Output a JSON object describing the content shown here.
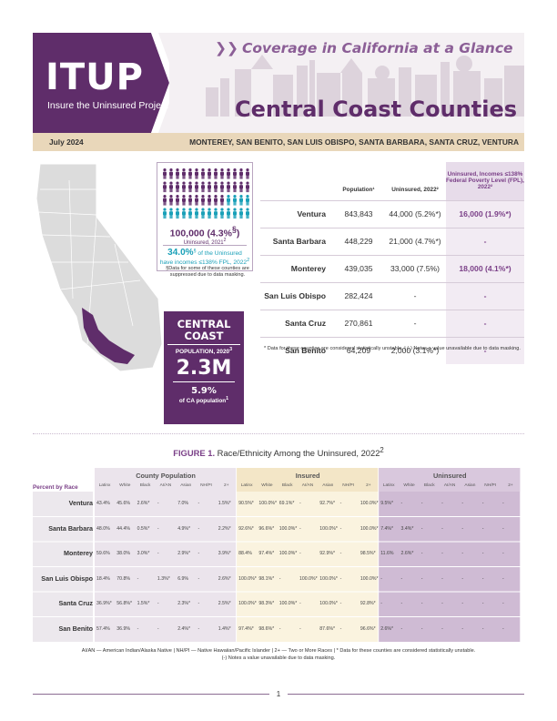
{
  "header": {
    "logo": "ITUP",
    "logo_sub": "Insure the Uninsured Project",
    "series": "Coverage in California at a Glance",
    "title": "Central Coast Counties",
    "date": "July 2024",
    "counties": "MONTEREY, SAN BENITO, SAN LUIS OBISPO, SANTA BARBARA, SANTA CRUZ, VENTURA"
  },
  "colors": {
    "brand": "#5f2d6a",
    "accent": "#8b5e96",
    "teal": "#1aa0b8",
    "tan": "#e9d7ba",
    "lavender": "#e7dcea"
  },
  "uninsured": {
    "count": "100,000 (4.3%",
    "count_sup": "§",
    "count_close": ")",
    "label": "Uninsured, 2021",
    "label_sup": "2",
    "pct": "34.0%",
    "pct_sup": "§",
    "pct_text": " of the Uninsured",
    "pct_text2": "have incomes ≤138% FPL, 2022",
    "pct_text2_sup": "2",
    "note": "§Data for some of these counties are suppressed due to data masking."
  },
  "population": {
    "title": "CENTRAL COAST",
    "label": "POPULATION, 2020",
    "label_sup": "3",
    "value": "2.3M",
    "pct": "5.9%",
    "pct_label": "of CA population",
    "pct_label_sup": "1"
  },
  "county_table": {
    "headers": [
      "Population¹",
      "Uninsured, 2022²",
      "Uninsured, Incomes ≤138% Federal Poverty Level (FPL), 2022²"
    ],
    "rows": [
      {
        "county": "Ventura",
        "population": "843,843",
        "uninsured": "44,000 (5.2%*)",
        "fpl": "16,000 (1.9%*)"
      },
      {
        "county": "Santa Barbara",
        "population": "448,229",
        "uninsured": "21,000 (4.7%*)",
        "fpl": "-"
      },
      {
        "county": "Monterey",
        "population": "439,035",
        "uninsured": "33,000 (7.5%)",
        "fpl": "18,000 (4.1%*)"
      },
      {
        "county": "San Luis Obispo",
        "population": "282,424",
        "uninsured": "-",
        "fpl": "-"
      },
      {
        "county": "Santa Cruz",
        "population": "270,861",
        "uninsured": "-",
        "fpl": "-"
      },
      {
        "county": "San Benito",
        "population": "64,209",
        "uninsured": "2,000 (3.1%*)",
        "fpl": "-"
      }
    ],
    "note": "* Data for these counties are considered statistically unstable. | (-) Notes a value unavailable due to data masking."
  },
  "figure": {
    "label": "FIGURE 1.",
    "title": " Race/Ethnicity Among the Uninsured, 2022",
    "title_sup": "2",
    "percent_by_race": "Percent by Race",
    "groups": [
      "County Population",
      "Insured",
      "Uninsured"
    ],
    "columns": [
      "Latinx",
      "White",
      "Black",
      "AI/AN",
      "Asian",
      "NH/PI",
      "2+"
    ],
    "rows": [
      {
        "county": "Ventura",
        "values": [
          "43.4%",
          "45.6%",
          "2.6%*",
          "-",
          "7.0%",
          "-",
          "1.5%*",
          "90.5%*",
          "100.0%*",
          "69.1%*",
          "-",
          "92.7%*",
          "-",
          "100.0%*",
          "9.5%*",
          "-",
          "-",
          "-",
          "-",
          "-",
          "-"
        ]
      },
      {
        "county": "Santa Barbara",
        "values": [
          "48.0%",
          "44.4%",
          "0.5%*",
          "-",
          "4.9%*",
          "-",
          "2.2%*",
          "92.6%*",
          "96.6%*",
          "100.0%*",
          "-",
          "100.0%*",
          "-",
          "100.0%*",
          "7.4%*",
          "3.4%*",
          "-",
          "-",
          "-",
          "-",
          "-"
        ]
      },
      {
        "county": "Monterey",
        "values": [
          "59.6%",
          "38.0%",
          "3.0%*",
          "-",
          "2.9%*",
          "-",
          "3.9%*",
          "88.4%",
          "97.4%*",
          "100.0%*",
          "-",
          "92.9%*",
          "-",
          "98.5%*",
          "11.6%",
          "2.6%*",
          "-",
          "-",
          "-",
          "-",
          "-"
        ]
      },
      {
        "county": "San Luis Obispo",
        "values": [
          "18.4%",
          "70.8%",
          "-",
          "1.3%*",
          "6.9%",
          "-",
          "2.6%*",
          "100.0%*",
          "98.1%*",
          "-",
          "100.0%*",
          "100.0%*",
          "-",
          "100.0%*",
          "-",
          "-",
          "-",
          "-",
          "-",
          "-",
          "-"
        ]
      },
      {
        "county": "Santa Cruz",
        "values": [
          "36.9%*",
          "56.8%*",
          "1.5%*",
          "-",
          "2.3%*",
          "-",
          "2.5%*",
          "100.0%*",
          "98.3%*",
          "100.0%*",
          "-",
          "100.0%*",
          "-",
          "92.8%*",
          "-",
          "-",
          "-",
          "-",
          "-",
          "-",
          "-"
        ]
      },
      {
        "county": "San Benito",
        "values": [
          "57.4%",
          "36.9%",
          "-",
          "-",
          "2.4%*",
          "-",
          "1.4%*",
          "97.4%*",
          "98.6%*",
          "-",
          "-",
          "87.6%*",
          "-",
          "96.6%*",
          "2.6%*",
          "-",
          "-",
          "-",
          "-",
          "-",
          "-"
        ]
      }
    ],
    "note1": "AI/AN — American Indian/Alaska Native | NH/PI — Native Hawaiian/Pacific Islander | 2+ — Two or More Races | * Data for these counties are considered statistically unstable.",
    "note2": "(-) Notes a value unavailable due to data masking."
  },
  "page_number": "1"
}
